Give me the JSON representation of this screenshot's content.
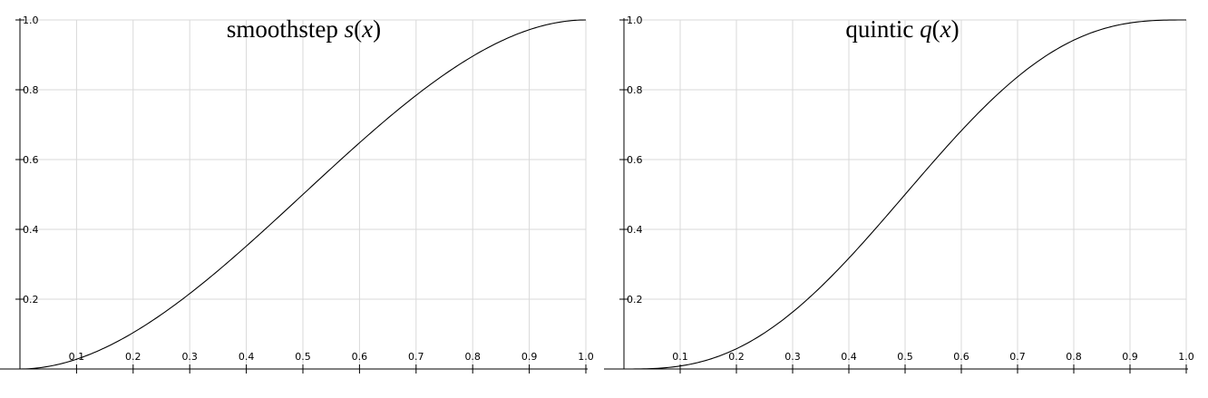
{
  "chart_data": [
    {
      "type": "line",
      "title": "smoothstep s(x)",
      "title_parts": {
        "name": "smoothstep",
        "fn": "s",
        "open": "(",
        "arg": "x",
        "close": ")"
      },
      "function": "smoothstep",
      "xlim": [
        0,
        1
      ],
      "ylim": [
        0,
        1
      ],
      "x_ticks": [
        "0.1",
        "0.2",
        "0.3",
        "0.4",
        "0.5",
        "0.6",
        "0.7",
        "0.8",
        "0.9",
        "1.0"
      ],
      "y_ticks": [
        "0.2",
        "0.4",
        "0.6",
        "0.8",
        "1.0"
      ],
      "grid": true,
      "series": [
        {
          "x": [
            0,
            0.1,
            0.2,
            0.3,
            0.4,
            0.5,
            0.6,
            0.7,
            0.8,
            0.9,
            1.0
          ],
          "y": [
            0,
            0.028,
            0.104,
            0.216,
            0.352,
            0.5,
            0.648,
            0.784,
            0.896,
            0.972,
            1.0
          ]
        }
      ]
    },
    {
      "type": "line",
      "title": "quintic q(x)",
      "title_parts": {
        "name": "quintic",
        "fn": "q",
        "open": "(",
        "arg": "x",
        "close": ")"
      },
      "function": "quintic",
      "xlim": [
        0,
        1
      ],
      "ylim": [
        0,
        1
      ],
      "x_ticks": [
        "0.1",
        "0.2",
        "0.3",
        "0.4",
        "0.5",
        "0.6",
        "0.7",
        "0.8",
        "0.9",
        "1.0"
      ],
      "y_ticks": [
        "0.2",
        "0.4",
        "0.6",
        "0.8",
        "1.0"
      ],
      "grid": true,
      "series": [
        {
          "x": [
            0,
            0.1,
            0.2,
            0.3,
            0.4,
            0.5,
            0.6,
            0.7,
            0.8,
            0.9,
            1.0
          ],
          "y": [
            0,
            0.009,
            0.058,
            0.163,
            0.317,
            0.5,
            0.683,
            0.837,
            0.942,
            0.991,
            1.0
          ]
        }
      ]
    }
  ]
}
